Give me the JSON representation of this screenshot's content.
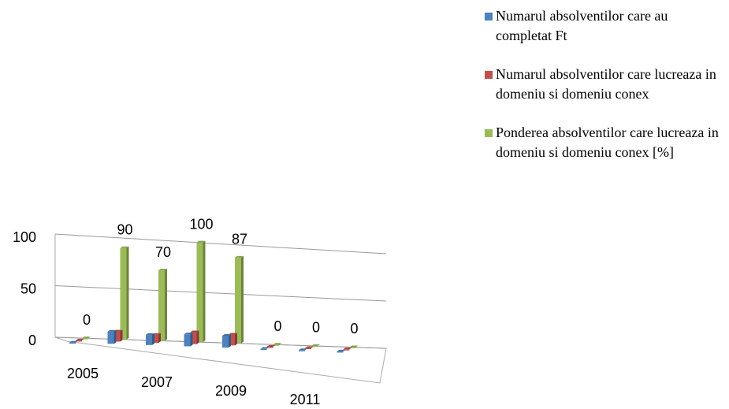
{
  "chart_data": {
    "type": "bar3d",
    "categories": [
      "2005",
      null,
      "2007",
      null,
      "2009",
      null,
      "2011",
      null
    ],
    "series": [
      {
        "name": "Numarul absolventilor care au completat Ft",
        "color": "#4f81bd",
        "values": [
          0,
          12,
          10,
          12,
          12,
          0,
          0,
          0
        ]
      },
      {
        "name": "Numarul absolventilor care lucreaza in domeniu si domeniu conex",
        "color": "#c0504d",
        "values": [
          0,
          10,
          8,
          12,
          11,
          0,
          0,
          0
        ]
      },
      {
        "name": "Ponderea absolventilor care lucreaza in domeniu si domeniu conex [%]",
        "color": "#9bbb59",
        "values": [
          0,
          90,
          70,
          100,
          87,
          0,
          0,
          0
        ],
        "data_labels": true
      }
    ],
    "ylim": [
      0,
      100
    ],
    "yticks": [
      0,
      50,
      100
    ],
    "grid": true,
    "legend": "right"
  }
}
